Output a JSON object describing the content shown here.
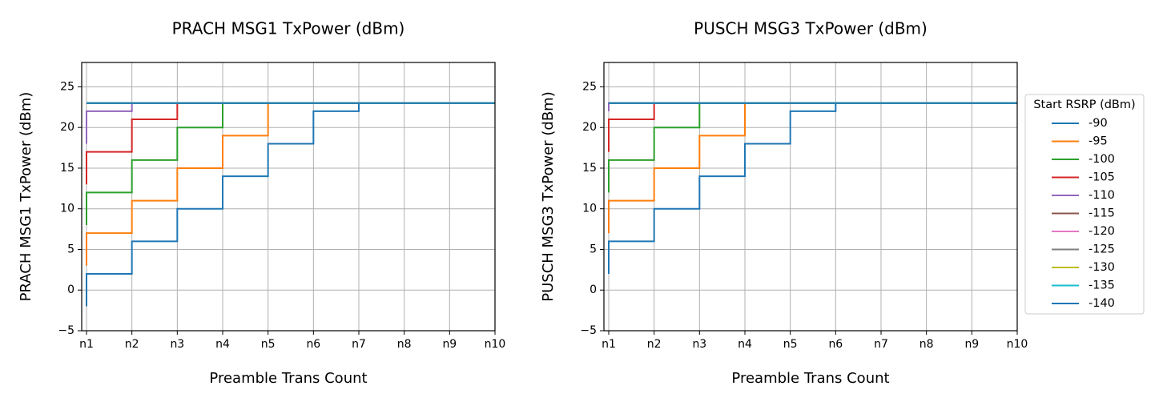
{
  "chart_data": [
    {
      "type": "step",
      "title": "PRACH MSG1 TxPower (dBm)",
      "x_label": "Preamble Trans Count",
      "y_label": "PRACH MSG1 TxPower (dBm)",
      "categories": [
        "n1",
        "n2",
        "n3",
        "n4",
        "n5",
        "n6",
        "n7",
        "n8",
        "n9",
        "n10"
      ],
      "ylim": [
        -5,
        28
      ],
      "yticks": [
        {
          "value": -5,
          "label": "−5"
        },
        0,
        5,
        10,
        15,
        20,
        25
      ],
      "grid": true,
      "series": [
        {
          "color": "#1f77b4",
          "values": [
            -2,
            2,
            6,
            10,
            14,
            18,
            22,
            23,
            23,
            23
          ]
        },
        {
          "color": "#ff7f0e",
          "values": [
            3,
            7,
            11,
            15,
            19,
            23,
            23,
            23,
            23,
            23
          ]
        },
        {
          "color": "#2ca02c",
          "values": [
            8,
            12,
            16,
            20,
            23,
            23,
            23,
            23,
            23,
            23
          ]
        },
        {
          "color": "#d62728",
          "values": [
            13,
            17,
            21,
            23,
            23,
            23,
            23,
            23,
            23,
            23
          ]
        },
        {
          "color": "#9467bd",
          "values": [
            18,
            22,
            23,
            23,
            23,
            23,
            23,
            23,
            23,
            23
          ]
        },
        {
          "color": "#8c564b",
          "values": [
            23,
            23,
            23,
            23,
            23,
            23,
            23,
            23,
            23,
            23
          ]
        },
        {
          "color": "#e377c2",
          "values": [
            23,
            23,
            23,
            23,
            23,
            23,
            23,
            23,
            23,
            23
          ]
        },
        {
          "color": "#7f7f7f",
          "values": [
            23,
            23,
            23,
            23,
            23,
            23,
            23,
            23,
            23,
            23
          ]
        },
        {
          "color": "#bcbd22",
          "values": [
            23,
            23,
            23,
            23,
            23,
            23,
            23,
            23,
            23,
            23
          ]
        },
        {
          "color": "#17becf",
          "values": [
            23,
            23,
            23,
            23,
            23,
            23,
            23,
            23,
            23,
            23
          ]
        },
        {
          "color": "#1f77b4",
          "values": [
            23,
            23,
            23,
            23,
            23,
            23,
            23,
            23,
            23,
            23
          ]
        }
      ]
    },
    {
      "type": "step",
      "title": "PUSCH MSG3 TxPower (dBm)",
      "x_label": "Preamble Trans Count",
      "y_label": "PUSCH MSG3 TxPower (dBm)",
      "categories": [
        "n1",
        "n2",
        "n3",
        "n4",
        "n5",
        "n6",
        "n7",
        "n8",
        "n9",
        "n10"
      ],
      "ylim": [
        -5,
        28
      ],
      "yticks": [
        {
          "value": -5,
          "label": "−5"
        },
        0,
        5,
        10,
        15,
        20,
        25
      ],
      "grid": true,
      "legend_title": "Start RSRP (dBm)",
      "legend": "outside right",
      "series": [
        {
          "name": "-90",
          "color": "#1f77b4",
          "values": [
            2,
            6,
            10,
            14,
            18,
            22,
            23,
            23,
            23,
            23
          ]
        },
        {
          "name": "-95",
          "color": "#ff7f0e",
          "values": [
            7,
            11,
            15,
            19,
            23,
            23,
            23,
            23,
            23,
            23
          ]
        },
        {
          "name": "-100",
          "color": "#2ca02c",
          "values": [
            12,
            16,
            20,
            23,
            23,
            23,
            23,
            23,
            23,
            23
          ]
        },
        {
          "name": "-105",
          "color": "#d62728",
          "values": [
            17,
            21,
            23,
            23,
            23,
            23,
            23,
            23,
            23,
            23
          ]
        },
        {
          "name": "-110",
          "color": "#9467bd",
          "values": [
            22,
            23,
            23,
            23,
            23,
            23,
            23,
            23,
            23,
            23
          ]
        },
        {
          "name": "-115",
          "color": "#8c564b",
          "values": [
            23,
            23,
            23,
            23,
            23,
            23,
            23,
            23,
            23,
            23
          ]
        },
        {
          "name": "-120",
          "color": "#e377c2",
          "values": [
            23,
            23,
            23,
            23,
            23,
            23,
            23,
            23,
            23,
            23
          ]
        },
        {
          "name": "-125",
          "color": "#7f7f7f",
          "values": [
            23,
            23,
            23,
            23,
            23,
            23,
            23,
            23,
            23,
            23
          ]
        },
        {
          "name": "-130",
          "color": "#bcbd22",
          "values": [
            23,
            23,
            23,
            23,
            23,
            23,
            23,
            23,
            23,
            23
          ]
        },
        {
          "name": "-135",
          "color": "#17becf",
          "values": [
            23,
            23,
            23,
            23,
            23,
            23,
            23,
            23,
            23,
            23
          ]
        },
        {
          "name": "-140",
          "color": "#1f77b4",
          "values": [
            23,
            23,
            23,
            23,
            23,
            23,
            23,
            23,
            23,
            23
          ]
        }
      ]
    }
  ]
}
